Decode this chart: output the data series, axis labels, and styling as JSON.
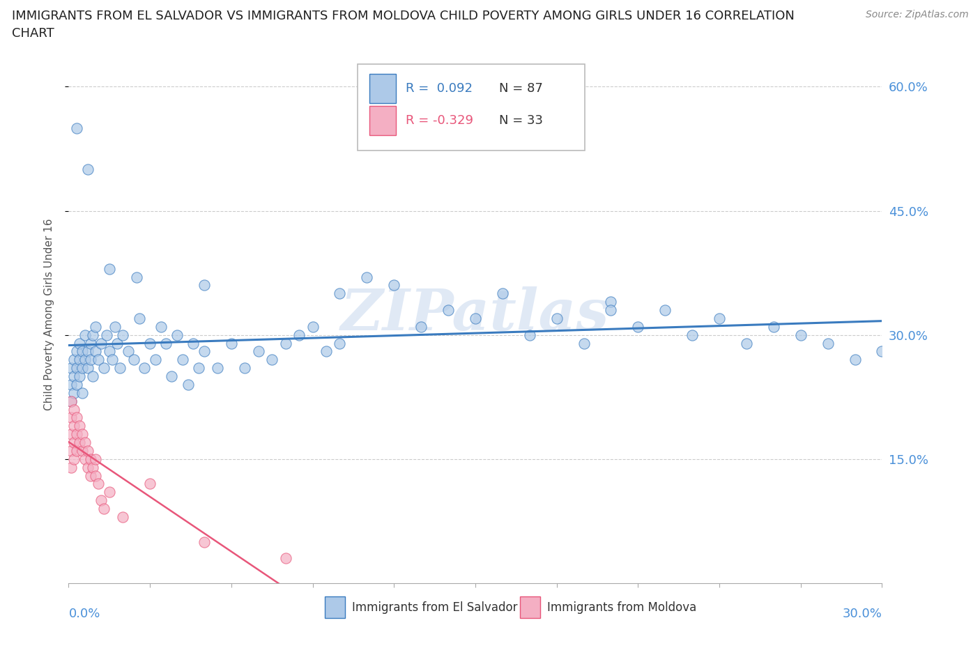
{
  "title_line1": "IMMIGRANTS FROM EL SALVADOR VS IMMIGRANTS FROM MOLDOVA CHILD POVERTY AMONG GIRLS UNDER 16 CORRELATION",
  "title_line2": "CHART",
  "source": "Source: ZipAtlas.com",
  "ylabel": "Child Poverty Among Girls Under 16",
  "y_tick_vals": [
    0.15,
    0.3,
    0.45,
    0.6
  ],
  "y_tick_labels": [
    "15.0%",
    "30.0%",
    "45.0%",
    "60.0%"
  ],
  "x_range": [
    0.0,
    0.3
  ],
  "y_range": [
    0.0,
    0.65
  ],
  "watermark": "ZIPatlas",
  "legend1_label": "Immigrants from El Salvador",
  "legend2_label": "Immigrants from Moldova",
  "R_salvador": 0.092,
  "N_salvador": 87,
  "R_moldova": -0.329,
  "N_moldova": 33,
  "dot_color_salvador": "#adc9e8",
  "dot_color_moldova": "#f4afc3",
  "line_color_salvador": "#3a7bbf",
  "line_color_moldova": "#e8567a",
  "tick_color": "#4a90d9",
  "background_color": "#ffffff",
  "dot_size": 120,
  "dot_alpha": 0.7,
  "es_x": [
    0.001,
    0.001,
    0.001,
    0.002,
    0.002,
    0.002,
    0.003,
    0.003,
    0.003,
    0.004,
    0.004,
    0.004,
    0.005,
    0.005,
    0.005,
    0.006,
    0.006,
    0.007,
    0.007,
    0.008,
    0.008,
    0.009,
    0.009,
    0.01,
    0.01,
    0.011,
    0.012,
    0.013,
    0.014,
    0.015,
    0.016,
    0.017,
    0.018,
    0.019,
    0.02,
    0.022,
    0.024,
    0.026,
    0.028,
    0.03,
    0.032,
    0.034,
    0.036,
    0.038,
    0.04,
    0.042,
    0.044,
    0.046,
    0.048,
    0.05,
    0.055,
    0.06,
    0.065,
    0.07,
    0.075,
    0.08,
    0.085,
    0.09,
    0.095,
    0.1,
    0.11,
    0.12,
    0.13,
    0.14,
    0.15,
    0.16,
    0.17,
    0.18,
    0.19,
    0.2,
    0.21,
    0.22,
    0.23,
    0.24,
    0.25,
    0.26,
    0.27,
    0.28,
    0.29,
    0.3,
    0.003,
    0.007,
    0.015,
    0.025,
    0.05,
    0.1,
    0.2
  ],
  "es_y": [
    0.24,
    0.26,
    0.22,
    0.25,
    0.27,
    0.23,
    0.26,
    0.28,
    0.24,
    0.27,
    0.25,
    0.29,
    0.26,
    0.28,
    0.23,
    0.27,
    0.3,
    0.28,
    0.26,
    0.29,
    0.27,
    0.25,
    0.3,
    0.28,
    0.31,
    0.27,
    0.29,
    0.26,
    0.3,
    0.28,
    0.27,
    0.31,
    0.29,
    0.26,
    0.3,
    0.28,
    0.27,
    0.32,
    0.26,
    0.29,
    0.27,
    0.31,
    0.29,
    0.25,
    0.3,
    0.27,
    0.24,
    0.29,
    0.26,
    0.28,
    0.26,
    0.29,
    0.26,
    0.28,
    0.27,
    0.29,
    0.3,
    0.31,
    0.28,
    0.29,
    0.37,
    0.36,
    0.31,
    0.33,
    0.32,
    0.35,
    0.3,
    0.32,
    0.29,
    0.34,
    0.31,
    0.33,
    0.3,
    0.32,
    0.29,
    0.31,
    0.3,
    0.29,
    0.27,
    0.28,
    0.55,
    0.5,
    0.38,
    0.37,
    0.36,
    0.35,
    0.33
  ],
  "md_x": [
    0.001,
    0.001,
    0.001,
    0.001,
    0.001,
    0.002,
    0.002,
    0.002,
    0.002,
    0.003,
    0.003,
    0.003,
    0.004,
    0.004,
    0.005,
    0.005,
    0.006,
    0.006,
    0.007,
    0.007,
    0.008,
    0.008,
    0.009,
    0.01,
    0.01,
    0.011,
    0.012,
    0.013,
    0.015,
    0.02,
    0.03,
    0.05,
    0.08
  ],
  "md_y": [
    0.22,
    0.2,
    0.18,
    0.16,
    0.14,
    0.21,
    0.19,
    0.17,
    0.15,
    0.2,
    0.18,
    0.16,
    0.19,
    0.17,
    0.18,
    0.16,
    0.17,
    0.15,
    0.16,
    0.14,
    0.15,
    0.13,
    0.14,
    0.15,
    0.13,
    0.12,
    0.1,
    0.09,
    0.11,
    0.08,
    0.12,
    0.05,
    0.03
  ]
}
